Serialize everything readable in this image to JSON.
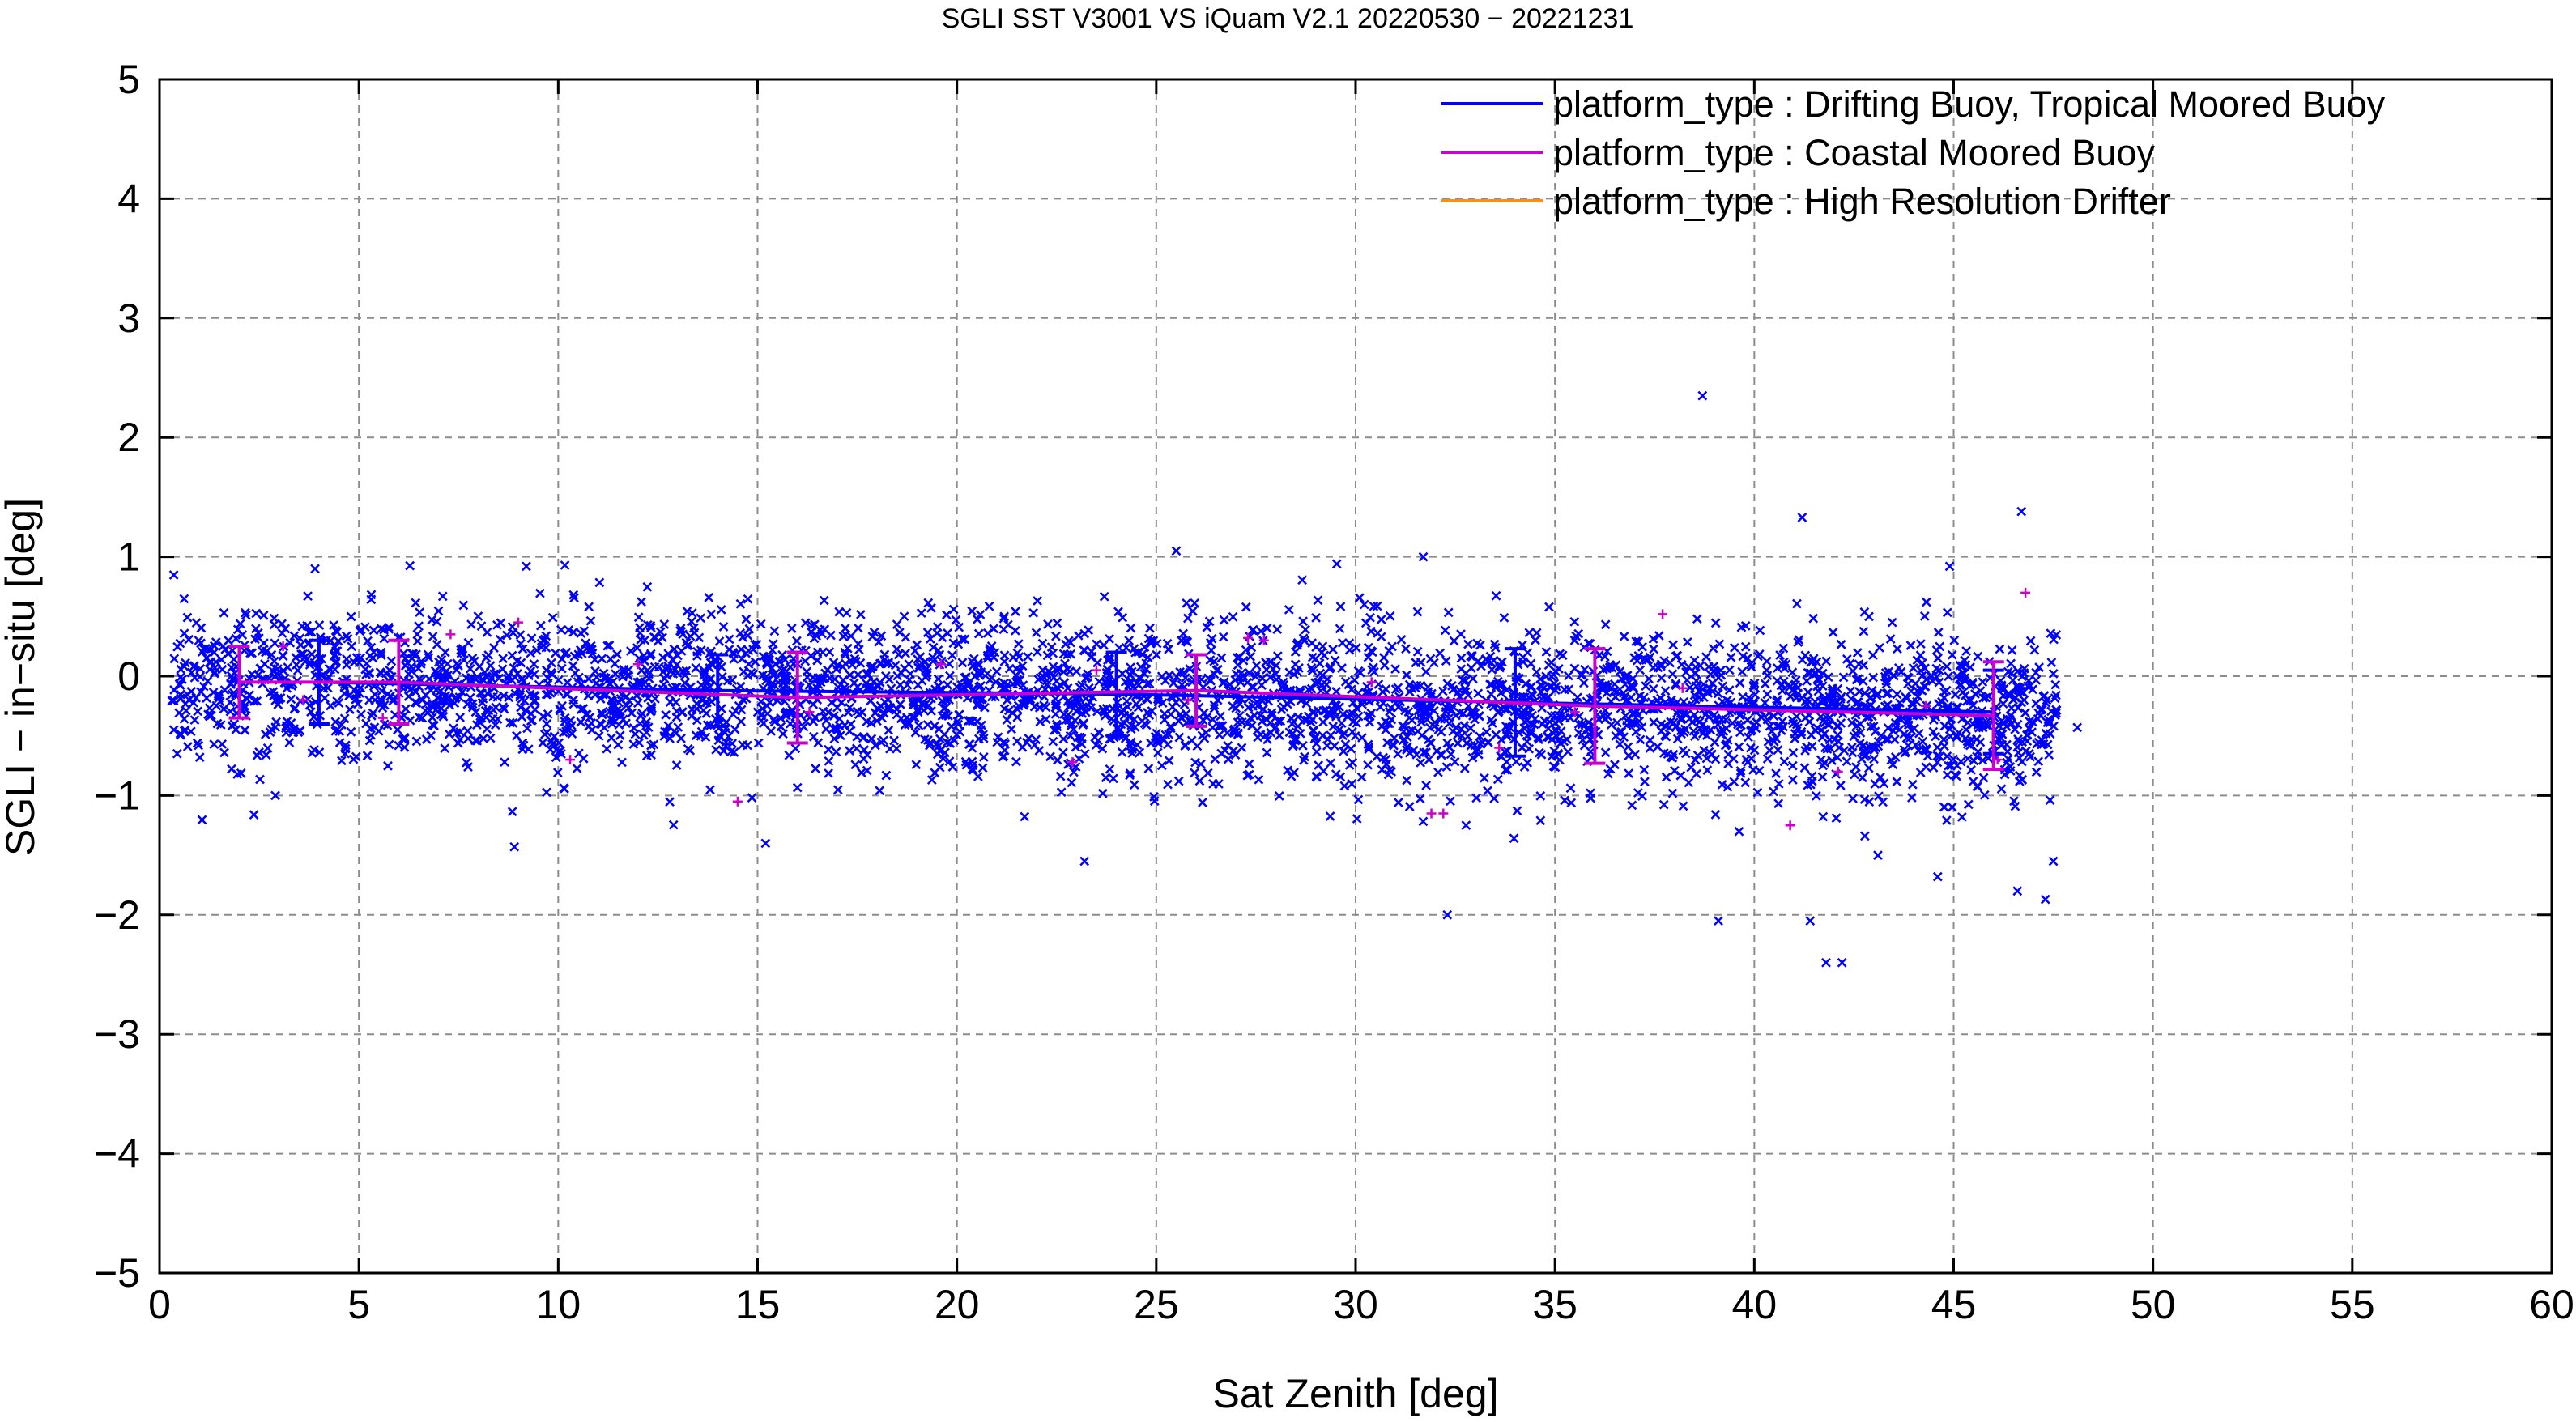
{
  "chart_data": {
    "type": "scatter",
    "title": "SGLI SST V3001 VS iQuam V2.1 20220530 − 20221231",
    "xlabel": "Sat Zenith [deg]",
    "ylabel": "SGLI − in−situ [deg]",
    "xlim": [
      0,
      60
    ],
    "ylim": [
      -5,
      5
    ],
    "xticks": [
      0,
      5,
      10,
      15,
      20,
      25,
      30,
      35,
      40,
      45,
      50,
      55,
      60
    ],
    "yticks": [
      -5,
      -4,
      -3,
      -2,
      -1,
      0,
      1,
      2,
      3,
      4,
      5
    ],
    "xtick_labels": [
      "0",
      "5",
      "10",
      "15",
      "20",
      "25",
      "30",
      "35",
      "40",
      "45",
      "50",
      "55",
      "60"
    ],
    "ytick_labels": [
      "−5",
      "−4",
      "−3",
      "−2",
      "−1",
      "0",
      "1",
      "2",
      "3",
      "4",
      "5"
    ],
    "grid": true,
    "legend_position": "top-right",
    "colors": {
      "series0": "#0000ff",
      "series1": "#cc00cc",
      "series2": "#ff8c1a",
      "grid": "#8c8c8c"
    },
    "series": [
      {
        "name": "platform_type : Drifting Buoy, Tropical Moored Buoy",
        "marker": "x",
        "scatter_distribution": {
          "x_range": [
            0.3,
            47.6
          ],
          "mean_start": -0.05,
          "mean_end": -0.35,
          "spread_sd": 0.33,
          "count_approx": 3800
        },
        "outliers": [
          {
            "x": 38.7,
            "y": 2.35
          },
          {
            "x": 41.2,
            "y": 1.33
          },
          {
            "x": 46.7,
            "y": 1.38
          },
          {
            "x": 25.5,
            "y": 1.05
          },
          {
            "x": 9.2,
            "y": 0.92
          },
          {
            "x": 3.9,
            "y": 0.9
          },
          {
            "x": 44.9,
            "y": 0.92
          },
          {
            "x": 32.3,
            "y": -2.0
          },
          {
            "x": 39.1,
            "y": -2.05
          },
          {
            "x": 41.8,
            "y": -2.4
          },
          {
            "x": 42.2,
            "y": -2.4
          },
          {
            "x": 23.2,
            "y": -1.55
          },
          {
            "x": 8.9,
            "y": -1.43
          },
          {
            "x": 15.2,
            "y": -1.4
          },
          {
            "x": 47.3,
            "y": -1.87
          },
          {
            "x": 46.6,
            "y": -1.8
          },
          {
            "x": 47.5,
            "y": -1.55
          },
          {
            "x": 41.4,
            "y": -2.05
          },
          {
            "x": 44.6,
            "y": -1.68
          },
          {
            "x": 43.1,
            "y": -1.5
          },
          {
            "x": 48.1,
            "y": -0.43
          }
        ],
        "binned_mean": {
          "x": [
            4,
            14,
            24,
            34,
            46
          ],
          "mean": [
            -0.05,
            -0.12,
            -0.15,
            -0.22,
            -0.3
          ],
          "std": [
            0.35,
            0.3,
            0.35,
            0.45,
            0.35
          ]
        }
      },
      {
        "name": "platform_type : Coastal Moored Buoy",
        "marker": "+",
        "points": [
          {
            "x": 3.1,
            "y": 0.25
          },
          {
            "x": 3.6,
            "y": -0.2
          },
          {
            "x": 5.6,
            "y": -0.35
          },
          {
            "x": 7.3,
            "y": 0.35
          },
          {
            "x": 9.0,
            "y": 0.45
          },
          {
            "x": 10.3,
            "y": -0.7
          },
          {
            "x": 12.0,
            "y": 0.1
          },
          {
            "x": 14.5,
            "y": -1.05
          },
          {
            "x": 16.3,
            "y": -0.3
          },
          {
            "x": 19.6,
            "y": 0.1
          },
          {
            "x": 22.9,
            "y": -0.72
          },
          {
            "x": 23.5,
            "y": 0.05
          },
          {
            "x": 25.8,
            "y": -0.2
          },
          {
            "x": 27.3,
            "y": 0.32
          },
          {
            "x": 27.7,
            "y": 0.3
          },
          {
            "x": 30.4,
            "y": -0.05
          },
          {
            "x": 31.9,
            "y": -1.15
          },
          {
            "x": 32.2,
            "y": -1.15
          },
          {
            "x": 33.6,
            "y": -0.6
          },
          {
            "x": 35.5,
            "y": -0.3
          },
          {
            "x": 37.7,
            "y": 0.52
          },
          {
            "x": 38.2,
            "y": -0.1
          },
          {
            "x": 40.9,
            "y": -1.25
          },
          {
            "x": 42.1,
            "y": -0.8
          },
          {
            "x": 44.3,
            "y": -0.25
          },
          {
            "x": 46.1,
            "y": -0.7
          },
          {
            "x": 46.8,
            "y": 0.7
          }
        ],
        "binned_mean": {
          "x": [
            2,
            6,
            16,
            26,
            36,
            46
          ],
          "mean": [
            -0.05,
            -0.05,
            -0.18,
            -0.12,
            -0.25,
            -0.33
          ],
          "std": [
            0.3,
            0.35,
            0.38,
            0.3,
            0.48,
            0.45
          ]
        }
      },
      {
        "name": "platform_type : High Resolution Drifter",
        "marker": "x",
        "points": []
      }
    ]
  }
}
